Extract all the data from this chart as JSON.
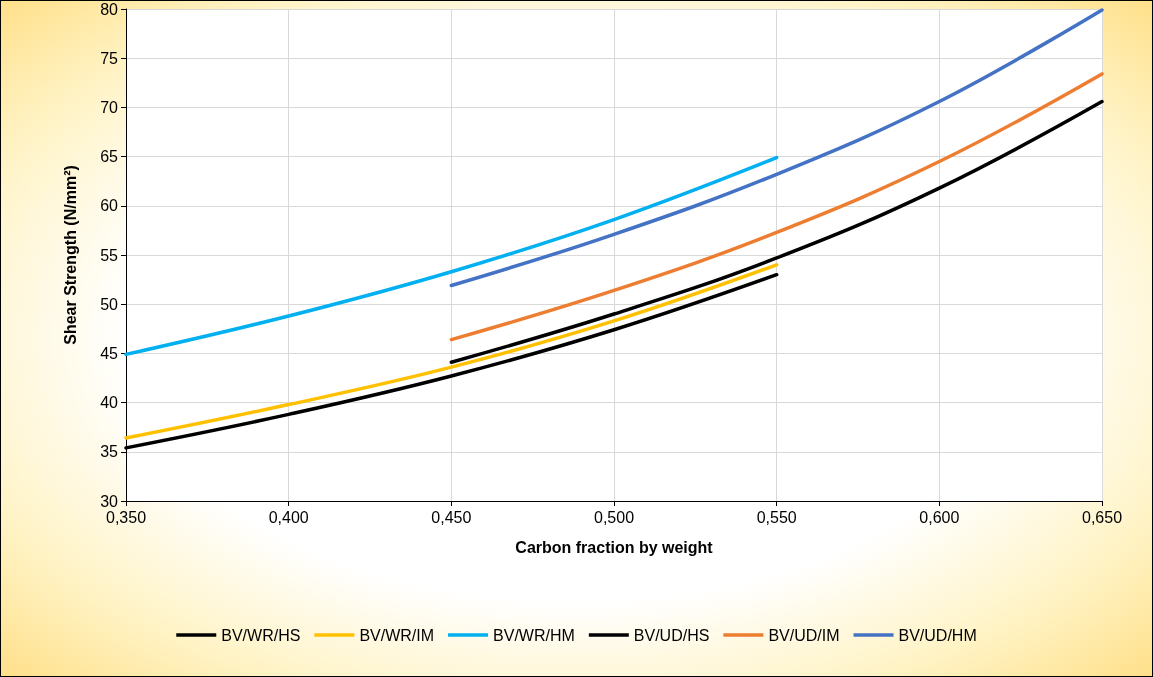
{
  "chart_data": {
    "type": "line",
    "xlabel": "Carbon fraction by weight",
    "ylabel": "Shear Strength (N/mm²)",
    "xlim": [
      0.35,
      0.65
    ],
    "xticks": [
      {
        "value": 0.35,
        "label": "0,350"
      },
      {
        "value": 0.4,
        "label": "0,400"
      },
      {
        "value": 0.45,
        "label": "0,450"
      },
      {
        "value": 0.5,
        "label": "0,500"
      },
      {
        "value": 0.55,
        "label": "0,550"
      },
      {
        "value": 0.6,
        "label": "0,600"
      },
      {
        "value": 0.65,
        "label": "0,650"
      }
    ],
    "ylim": [
      30,
      80
    ],
    "yticks": [
      30,
      35,
      40,
      45,
      50,
      55,
      60,
      65,
      70,
      75,
      80
    ],
    "grid": true,
    "legend": "bottom",
    "marker": "none",
    "line_style": "solid",
    "series": [
      {
        "name": "BV/WR/HS",
        "color": "#000000",
        "x": [
          0.35,
          0.4,
          0.45,
          0.5,
          0.55
        ],
        "values": [
          35.4,
          38.8,
          42.7,
          47.4,
          53.0
        ]
      },
      {
        "name": "BV/WR/IM",
        "color": "#ffc000",
        "x": [
          0.35,
          0.4,
          0.45,
          0.5,
          0.55
        ],
        "values": [
          36.4,
          39.8,
          43.6,
          48.3,
          54.0
        ]
      },
      {
        "name": "BV/WR/HM",
        "color": "#00b0f0",
        "x": [
          0.35,
          0.4,
          0.45,
          0.5,
          0.55
        ],
        "values": [
          44.9,
          48.8,
          53.3,
          58.6,
          64.9
        ]
      },
      {
        "name": "BV/UD/HS",
        "color": "#000000",
        "x": [
          0.45,
          0.5,
          0.55,
          0.6,
          0.65
        ],
        "values": [
          44.1,
          49.0,
          54.7,
          61.8,
          70.6
        ]
      },
      {
        "name": "BV/UD/IM",
        "color": "#ed7d31",
        "x": [
          0.45,
          0.5,
          0.55,
          0.6,
          0.65
        ],
        "values": [
          46.4,
          51.4,
          57.3,
          64.5,
          73.4
        ]
      },
      {
        "name": "BV/UD/HM",
        "color": "#4472c4",
        "x": [
          0.45,
          0.5,
          0.55,
          0.6,
          0.65
        ],
        "values": [
          51.9,
          57.1,
          63.2,
          70.6,
          79.9
        ]
      }
    ]
  }
}
